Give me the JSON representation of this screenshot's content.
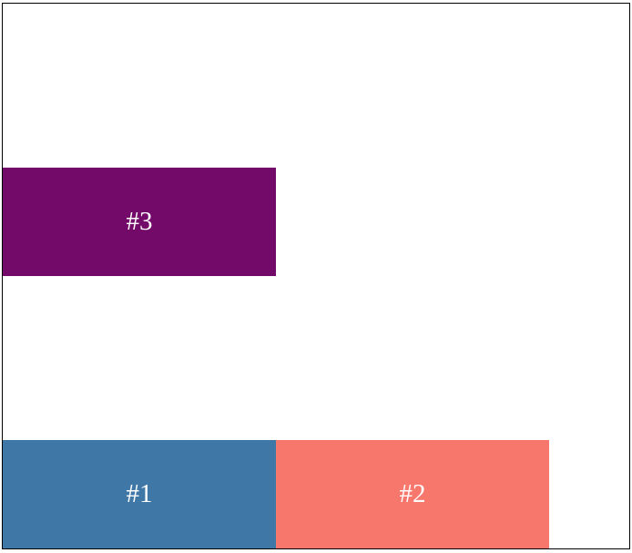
{
  "blocks": [
    {
      "label": "#3",
      "color": "#730a6a"
    },
    {
      "label": "#1",
      "color": "#3f77a7"
    },
    {
      "label": "#2",
      "color": "#f7776c"
    }
  ]
}
